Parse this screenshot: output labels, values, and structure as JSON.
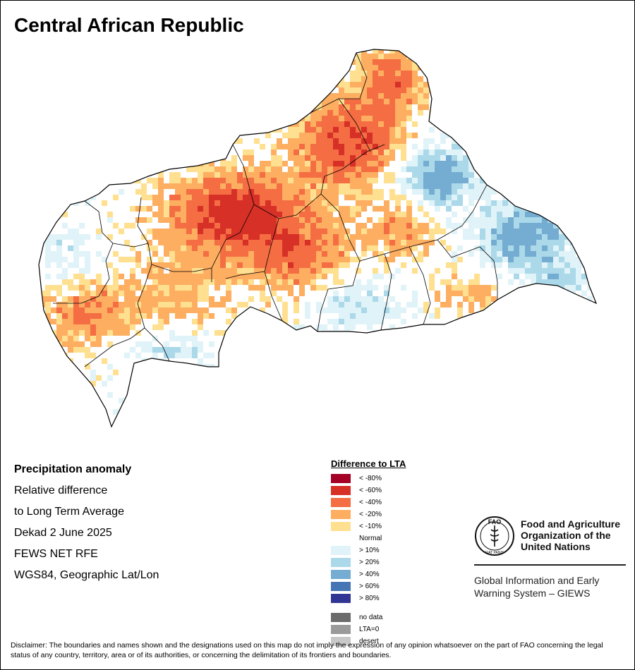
{
  "title": "Central African Republic",
  "info": {
    "heading": "Precipitation anomaly",
    "line1": "Relative difference",
    "line2": "to Long Term Average",
    "period": "Dekad 2 June 2025",
    "source": "FEWS NET RFE",
    "projection": "WGS84, Geographic Lat/Lon"
  },
  "legend": {
    "title": "Difference to LTA",
    "dry": [
      {
        "label": "< -80%",
        "color": "#a50026"
      },
      {
        "label": "< -60%",
        "color": "#d73027"
      },
      {
        "label": "< -40%",
        "color": "#f46d43"
      },
      {
        "label": "< -20%",
        "color": "#fdae61"
      },
      {
        "label": "< -10%",
        "color": "#fee090"
      }
    ],
    "normal": "Normal",
    "wet": [
      {
        "label": "> 10%",
        "color": "#e0f3f8"
      },
      {
        "label": "> 20%",
        "color": "#abd9e9"
      },
      {
        "label": "> 40%",
        "color": "#74add1"
      },
      {
        "label": "> 60%",
        "color": "#4575b4"
      },
      {
        "label": "> 80%",
        "color": "#313695"
      }
    ],
    "other": [
      {
        "label": "no data",
        "color": "#6b6b6b"
      },
      {
        "label": "LTA=0",
        "color": "#9a9a9a"
      },
      {
        "label": "desert",
        "color": "#c8c8c8"
      }
    ]
  },
  "fao": {
    "line1": "Food and Agriculture",
    "line2": "Organization of the",
    "line3": "United Nations",
    "logo_text": "FAO",
    "logo_motto": "FIAT PANIS"
  },
  "giews": {
    "line1": "Global Information and Early",
    "line2": "Warning System – GIEWS"
  },
  "disclaimer": "Disclaimer: The boundaries and names shown and the designations used on this map do not imply the expression of any opinion whatsoever on the part of FAO concerning the legal status of any country, territory, area or of its authorities, or concerning the delimitation of its frontiers and boundaries."
}
